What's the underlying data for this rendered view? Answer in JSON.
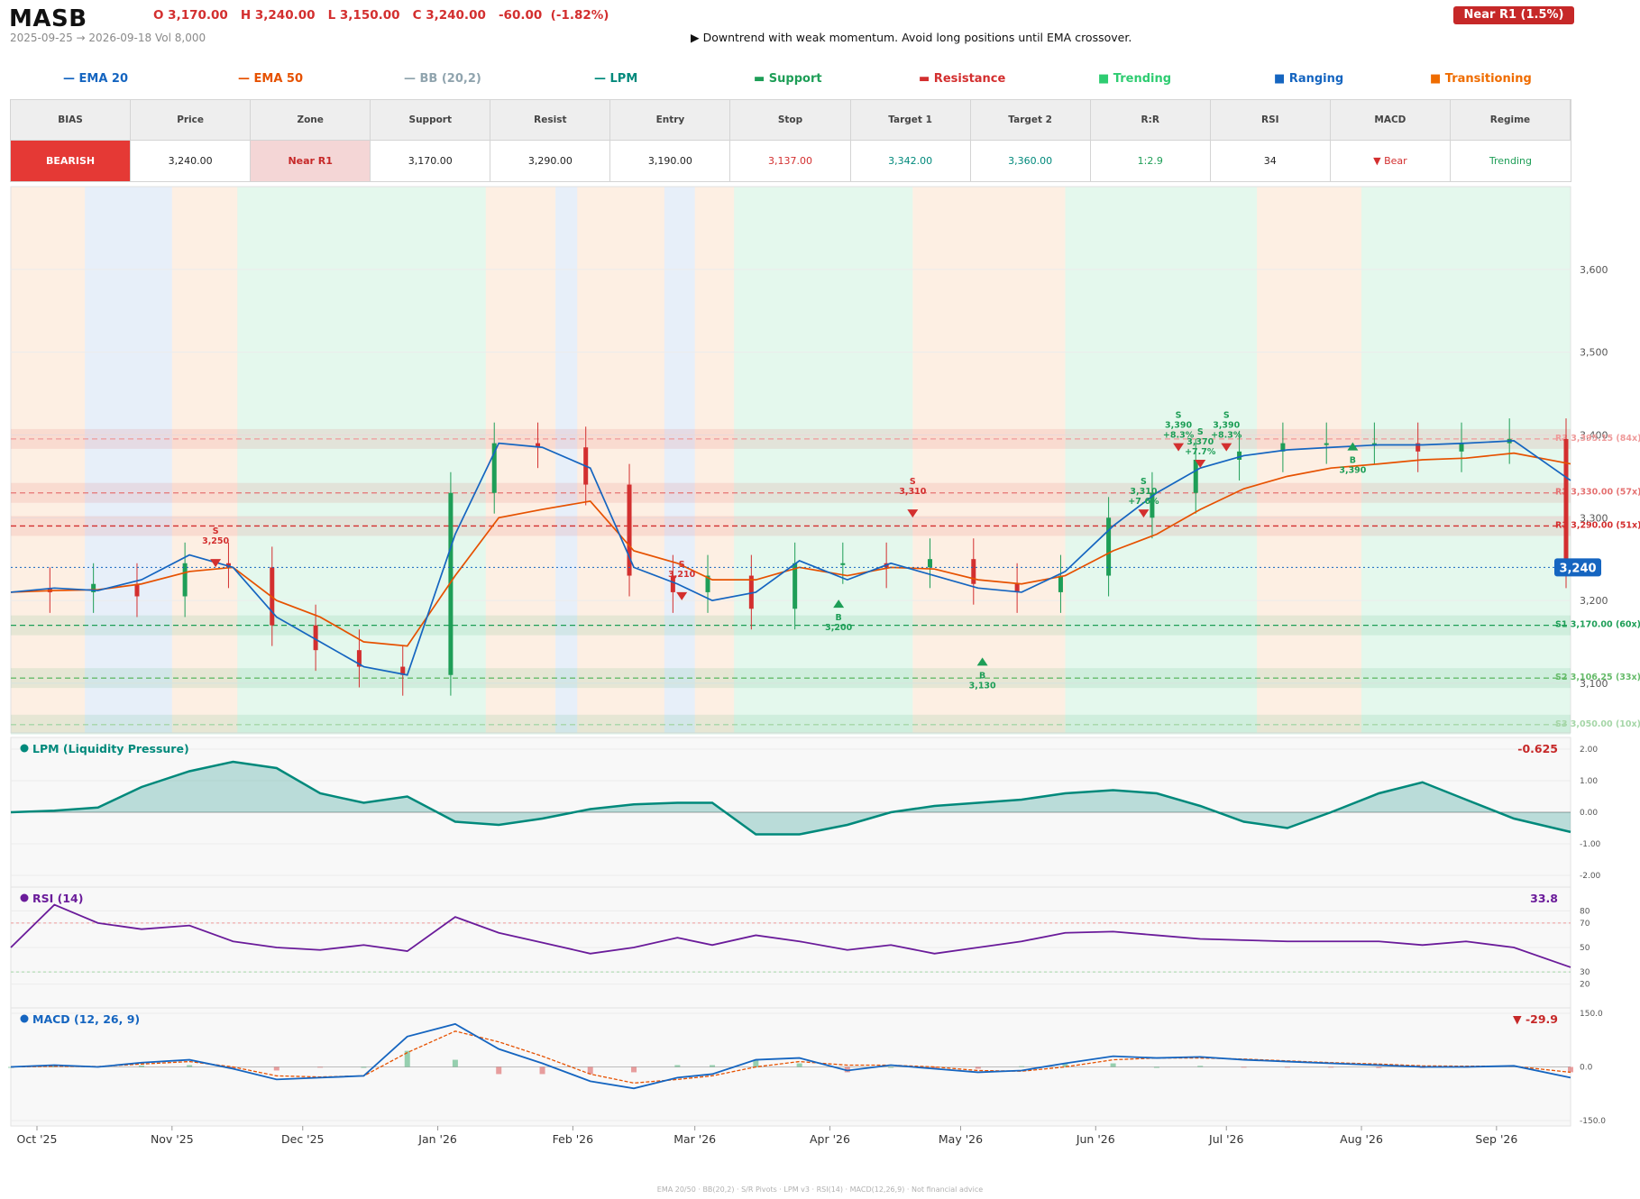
{
  "header": {
    "ticker": "MASB",
    "ohlc": "O 3,170.00   H 3,240.00   L 3,150.00   C 3,240.00   -60.00  (-1.82%)",
    "range": "2025-09-25 → 2026-09-18   Vol 8,000",
    "badge": "Near R1  (1.5%)",
    "signal": "▶  Downtrend with weak momentum. Avoid long positions until EMA crossover."
  },
  "legend": [
    {
      "label": "— EMA 20",
      "color": "#1565c0"
    },
    {
      "label": "— EMA 50",
      "color": "#e65100"
    },
    {
      "label": "— BB (20,2)",
      "color": "#90a4ae"
    },
    {
      "label": "— LPM",
      "color": "#00897b"
    },
    {
      "label": "▬  Support",
      "color": "#1e9e57"
    },
    {
      "label": "▬  Resistance",
      "color": "#d32f2f"
    },
    {
      "label": "■  Trending",
      "color": "#2ecc71"
    },
    {
      "label": "■  Ranging",
      "color": "#1565c0"
    },
    {
      "label": "■  Transitioning",
      "color": "#ef6c00"
    }
  ],
  "table": {
    "headers": [
      "BIAS",
      "Price",
      "Zone",
      "Support",
      "Resist",
      "Entry",
      "Stop",
      "Target 1",
      "Target 2",
      "R:R",
      "RSI",
      "MACD",
      "Regime"
    ],
    "values": [
      "BEARISH",
      "3,240.00",
      "Near R1",
      "3,170.00",
      "3,290.00",
      "3,190.00",
      "3,137.00",
      "3,342.00",
      "3,360.00",
      "1:2.9",
      "34",
      "▼ Bear",
      "Trending"
    ],
    "colors": [
      "#ffffff",
      "#222222",
      "#c62828",
      "#222222",
      "#222222",
      "#222222",
      "#d32f2f",
      "#00897b",
      "#00897b",
      "#1e9e57",
      "#222222",
      "#d32f2f",
      "#1e9e57"
    ]
  },
  "chart_data": [
    {
      "type": "candlestick",
      "title": "MASB",
      "y_ticks": [
        "3,100",
        "3,200",
        "3,300",
        "3,400",
        "3,500",
        "3,600"
      ],
      "ylim": [
        3040,
        3700
      ],
      "x_ticks": [
        "Oct '25",
        "Nov '25",
        "Dec '25",
        "Jan '26",
        "Feb '26",
        "Mar '26",
        "Apr '26",
        "May '26",
        "Jun '26",
        "Jul '26",
        "Aug '26",
        "Sep '26"
      ],
      "x_range": [
        "2025-09-25",
        "2026-09-18"
      ],
      "last_price_label": "3,240",
      "levels": [
        {
          "label": "R3 3,395.15 (84x)",
          "value": 3395.15,
          "kind": "resistance",
          "color": "#ef9a9a"
        },
        {
          "label": "R2 3,330.00 (57x)",
          "value": 3330,
          "kind": "resistance",
          "color": "#e57373"
        },
        {
          "label": "R1 3,290.00 (51x)",
          "value": 3290,
          "kind": "resistance",
          "color": "#d32f2f"
        },
        {
          "label": "S1 3,170.00 (60x)",
          "value": 3170,
          "kind": "support",
          "color": "#1e9e57"
        },
        {
          "label": "S2 3,106.25 (33x)",
          "value": 3106.25,
          "kind": "support",
          "color": "#66bb6a"
        },
        {
          "label": "S3 3,050.00 (10x)",
          "value": 3050,
          "kind": "support",
          "color": "#a5d6a7"
        }
      ],
      "price_series": {
        "dates": [
          "2025-09-25",
          "2025-10-05",
          "2025-10-15",
          "2025-10-25",
          "2025-11-05",
          "2025-11-15",
          "2025-11-25",
          "2025-12-05",
          "2025-12-15",
          "2025-12-25",
          "2026-01-05",
          "2026-01-15",
          "2026-01-25",
          "2026-02-05",
          "2026-02-15",
          "2026-02-25",
          "2026-03-05",
          "2026-03-15",
          "2026-03-25",
          "2026-04-05",
          "2026-04-15",
          "2026-04-25",
          "2026-05-05",
          "2026-05-15",
          "2026-05-25",
          "2026-06-05",
          "2026-06-15",
          "2026-06-25",
          "2026-07-05",
          "2026-07-15",
          "2026-07-25",
          "2026-08-05",
          "2026-08-15",
          "2026-08-25",
          "2026-09-05",
          "2026-09-18"
        ],
        "close": [
          3215,
          3210,
          3220,
          3205,
          3245,
          3240,
          3170,
          3140,
          3120,
          3110,
          3330,
          3390,
          3385,
          3340,
          3230,
          3210,
          3230,
          3190,
          3245,
          3245,
          3240,
          3250,
          3220,
          3210,
          3230,
          3300,
          3330,
          3370,
          3380,
          3390,
          3390,
          3390,
          3380,
          3390,
          3395,
          3240
        ],
        "ema20": [
          3210,
          3215,
          3212,
          3225,
          3255,
          3240,
          3180,
          3150,
          3120,
          3110,
          3280,
          3390,
          3385,
          3360,
          3240,
          3220,
          3200,
          3210,
          3248,
          3225,
          3245,
          3230,
          3215,
          3210,
          3235,
          3290,
          3330,
          3360,
          3375,
          3382,
          3385,
          3388,
          3388,
          3390,
          3393,
          3345
        ],
        "ema50": [
          3210,
          3212,
          3213,
          3220,
          3235,
          3240,
          3200,
          3180,
          3150,
          3145,
          3230,
          3300,
          3310,
          3320,
          3260,
          3245,
          3225,
          3225,
          3240,
          3230,
          3240,
          3238,
          3225,
          3220,
          3230,
          3260,
          3280,
          3310,
          3335,
          3350,
          3360,
          3365,
          3370,
          3372,
          3378,
          3365
        ]
      },
      "signals": [
        {
          "side": "S",
          "price": "3,250"
        },
        {
          "side": "S",
          "price": "3,210"
        },
        {
          "side": "B",
          "price": "3,200"
        },
        {
          "side": "S",
          "price": "3,310"
        },
        {
          "side": "B",
          "price": "3,130"
        },
        {
          "side": "S",
          "price": "3,310",
          "pct": "+7.6%"
        },
        {
          "side": "S",
          "price": "3,390",
          "pct": "+8.3%"
        },
        {
          "side": "S",
          "price": "3,370",
          "pct": "+7.7%"
        },
        {
          "side": "S",
          "price": "3,390",
          "pct": "+8.3%"
        },
        {
          "side": "B",
          "price": "3,390"
        }
      ],
      "regimes": [
        {
          "from": "2025-09-25",
          "to": "2025-10-12",
          "kind": "Transitioning"
        },
        {
          "from": "2025-10-12",
          "to": "2025-11-01",
          "kind": "Ranging"
        },
        {
          "from": "2025-11-01",
          "to": "2025-11-16",
          "kind": "Transitioning"
        },
        {
          "from": "2025-11-16",
          "to": "2026-01-12",
          "kind": "Trending"
        },
        {
          "from": "2026-01-12",
          "to": "2026-01-28",
          "kind": "Transitioning"
        },
        {
          "from": "2026-01-28",
          "to": "2026-02-02",
          "kind": "Ranging"
        },
        {
          "from": "2026-02-02",
          "to": "2026-02-22",
          "kind": "Transitioning"
        },
        {
          "from": "2026-02-22",
          "to": "2026-03-01",
          "kind": "Ranging"
        },
        {
          "from": "2026-03-01",
          "to": "2026-03-10",
          "kind": "Transitioning"
        },
        {
          "from": "2026-03-10",
          "to": "2026-04-20",
          "kind": "Trending"
        },
        {
          "from": "2026-04-20",
          "to": "2026-05-25",
          "kind": "Transitioning"
        },
        {
          "from": "2026-05-25",
          "to": "2026-07-08",
          "kind": "Trending"
        },
        {
          "from": "2026-07-08",
          "to": "2026-08-01",
          "kind": "Transitioning"
        },
        {
          "from": "2026-08-01",
          "to": "2026-09-18",
          "kind": "Trending"
        }
      ]
    },
    {
      "type": "area",
      "title": "LPM (Liquidity Pressure)",
      "last": "-0.625",
      "y_ticks": [
        "2.00",
        "1.00",
        "0.00",
        "-1.00",
        "-2.00"
      ],
      "ylim": [
        -2.2,
        2.2
      ],
      "values": [
        0,
        0.05,
        0.15,
        0.8,
        1.3,
        1.6,
        1.4,
        0.6,
        0.3,
        0.5,
        -0.3,
        -0.4,
        -0.2,
        0.1,
        0.25,
        0.3,
        0.3,
        -0.7,
        -0.7,
        -0.4,
        0,
        0.2,
        0.3,
        0.4,
        0.6,
        0.7,
        0.6,
        0.2,
        -0.3,
        -0.5,
        0,
        0.6,
        0.95,
        0.4,
        -0.2,
        -0.625
      ]
    },
    {
      "type": "line",
      "title": "RSI (14)",
      "last": "33.8",
      "y_ticks": [
        "80",
        "70",
        "50",
        "30",
        "20"
      ],
      "ylim": [
        5,
        95
      ],
      "values": [
        50,
        85,
        70,
        65,
        68,
        55,
        50,
        48,
        52,
        47,
        75,
        62,
        54,
        45,
        50,
        58,
        52,
        60,
        55,
        48,
        52,
        45,
        50,
        55,
        62,
        63,
        60,
        57,
        56,
        55,
        55,
        55,
        52,
        55,
        50,
        33.8
      ]
    },
    {
      "type": "line",
      "title": "MACD (12, 26, 9)",
      "last": "▼ -29.9",
      "y_ticks": [
        "150.0",
        "0.0",
        "-150.0"
      ],
      "ylim": [
        -150,
        150
      ],
      "macd": [
        0,
        5,
        0,
        12,
        20,
        -5,
        -35,
        -30,
        -25,
        85,
        120,
        50,
        10,
        -40,
        -60,
        -30,
        -20,
        20,
        25,
        -10,
        5,
        -5,
        -15,
        -10,
        10,
        30,
        25,
        28,
        20,
        15,
        10,
        5,
        0,
        0,
        3,
        -29.9
      ],
      "signal": [
        0,
        2,
        1,
        8,
        15,
        0,
        -25,
        -28,
        -25,
        40,
        100,
        70,
        30,
        -20,
        -45,
        -35,
        -25,
        0,
        15,
        5,
        5,
        0,
        -10,
        -12,
        0,
        20,
        25,
        25,
        22,
        17,
        12,
        8,
        3,
        2,
        2,
        -15
      ]
    }
  ],
  "footer": "EMA 20/50  ·  BB(20,2)  ·  S/R Pivots  ·  LPM v3  ·  RSI(14)  ·  MACD(12,26,9)  ·  Not financial advice"
}
